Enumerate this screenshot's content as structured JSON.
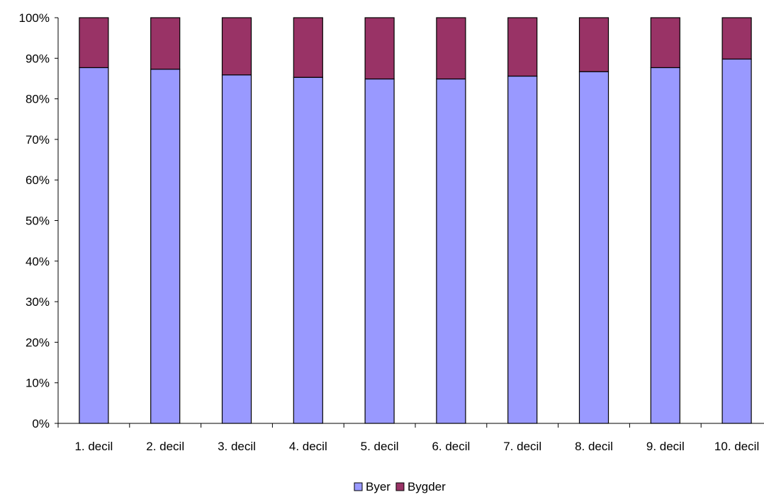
{
  "chart_data": {
    "type": "bar",
    "stacked": true,
    "categories": [
      "1. decil",
      "2. decil",
      "3. decil",
      "4. decil",
      "5. decil",
      "6. decil",
      "7. decil",
      "8. decil",
      "9. decil",
      "10. decil"
    ],
    "series": [
      {
        "name": "Byer",
        "color": "#9999ff",
        "values": [
          87.7,
          87.3,
          85.9,
          85.3,
          84.9,
          84.9,
          85.6,
          86.7,
          87.7,
          89.8
        ]
      },
      {
        "name": "Bygder",
        "color": "#993366",
        "values": [
          12.3,
          12.7,
          14.1,
          14.7,
          15.1,
          15.1,
          14.4,
          13.3,
          12.3,
          10.2
        ]
      }
    ],
    "y_ticks": [
      "0%",
      "10%",
      "20%",
      "30%",
      "40%",
      "50%",
      "60%",
      "70%",
      "80%",
      "90%",
      "100%"
    ],
    "ylim": [
      0,
      100
    ],
    "title": "",
    "xlabel": "",
    "ylabel": "",
    "grid": false,
    "legend": "bottom"
  }
}
